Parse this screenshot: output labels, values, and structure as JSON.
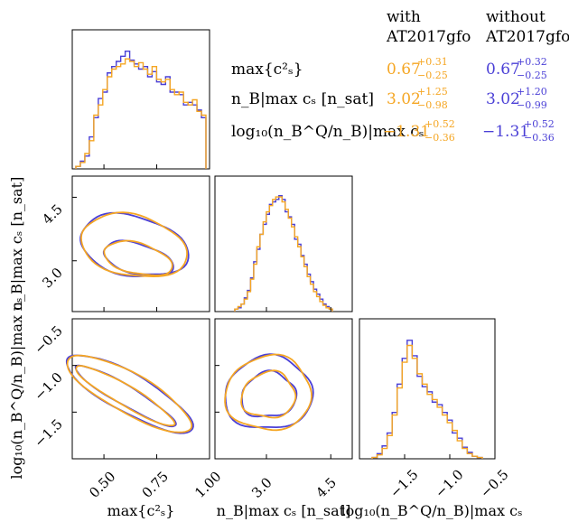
{
  "colors": {
    "with": "#f5a623",
    "without": "#4a3fd6",
    "frame": "#000000"
  },
  "legend": {
    "header_with": [
      "with",
      "AT2017gfo"
    ],
    "header_without": [
      "without",
      "AT2017gfo"
    ],
    "rows": [
      {
        "label": "max{c²ₛ}",
        "with": {
          "v": "0.67",
          "up": "+0.31",
          "lo": "−0.25"
        },
        "without": {
          "v": "0.67",
          "up": "+0.32",
          "lo": "−0.25"
        }
      },
      {
        "label": "n_B|max cₛ [n_sat]",
        "with": {
          "v": "3.02",
          "up": "+1.25",
          "lo": "−0.98"
        },
        "without": {
          "v": "3.02",
          "up": "+1.20",
          "lo": "−0.99"
        }
      },
      {
        "label": "log₁₀(n_B^Q/n_B)|max cₛ",
        "with": {
          "v": "−1.31",
          "up": "+0.52",
          "lo": "−0.36"
        },
        "without": {
          "v": "−1.31",
          "up": "+0.52",
          "lo": "−0.36"
        }
      }
    ]
  },
  "axes": {
    "xlabels": [
      "max{c²ₛ}",
      "n_B|max cₛ [n_sat]",
      "log₁₀(n_B^Q/n_B)|max cₛ"
    ],
    "ylabels": [
      "n_B|max cₛ [n_sat]",
      "log₁₀(n_B^Q/n_B)|max cₛ"
    ]
  },
  "chart_data": {
    "type": "corner",
    "variables": [
      {
        "name": "max{c²ₛ}",
        "range": [
          0.35,
          1.0
        ],
        "ticks": [
          0.5,
          0.75,
          1.0
        ],
        "tick_labels": [
          "0.50",
          "0.75",
          "1.00"
        ]
      },
      {
        "name": "n_B|max cₛ [n_sat]",
        "range": [
          1.8,
          5.0
        ],
        "ticks": [
          3.0,
          4.5
        ],
        "tick_labels": [
          "3.0",
          "4.5"
        ]
      },
      {
        "name": "log₁₀(n_B^Q/n_B)|max cₛ",
        "range": [
          -2.0,
          -0.5
        ],
        "ticks": [
          -1.5,
          -1.0,
          -0.5
        ],
        "tick_labels": [
          "−1.5",
          "−1.0",
          "−0.5"
        ]
      }
    ],
    "series": [
      {
        "name": "with AT2017gfo",
        "color": "#f5a623"
      },
      {
        "name": "without AT2017gfo",
        "color": "#4a3fd6"
      }
    ],
    "histograms": {
      "var0": {
        "with": [
          0.02,
          0.05,
          0.12,
          0.22,
          0.42,
          0.5,
          0.62,
          0.72,
          0.78,
          0.8,
          0.82,
          0.86,
          0.84,
          0.8,
          0.83,
          0.78,
          0.74,
          0.8,
          0.7,
          0.68,
          0.7,
          0.62,
          0.58,
          0.6,
          0.52,
          0.5,
          0.54,
          0.45,
          0.42
        ],
        "without": [
          0.02,
          0.06,
          0.1,
          0.25,
          0.4,
          0.55,
          0.6,
          0.75,
          0.8,
          0.84,
          0.88,
          0.92,
          0.85,
          0.82,
          0.78,
          0.8,
          0.72,
          0.76,
          0.68,
          0.66,
          0.72,
          0.6,
          0.6,
          0.58,
          0.5,
          0.52,
          0.5,
          0.46,
          0.4
        ]
      },
      "var1": {
        "with": [
          0.02,
          0.04,
          0.06,
          0.1,
          0.16,
          0.26,
          0.38,
          0.52,
          0.62,
          0.72,
          0.8,
          0.85,
          0.9,
          0.92,
          0.92,
          0.88,
          0.82,
          0.75,
          0.68,
          0.6,
          0.52,
          0.44,
          0.36,
          0.28,
          0.22,
          0.16,
          0.12,
          0.08,
          0.05,
          0.03,
          0.02
        ],
        "without": [
          0.02,
          0.03,
          0.06,
          0.11,
          0.17,
          0.27,
          0.4,
          0.5,
          0.62,
          0.7,
          0.78,
          0.86,
          0.88,
          0.9,
          0.93,
          0.9,
          0.8,
          0.76,
          0.7,
          0.58,
          0.54,
          0.45,
          0.38,
          0.3,
          0.24,
          0.18,
          0.14,
          0.1,
          0.06,
          0.04,
          0.02
        ]
      },
      "var2": {
        "with": [
          0.01,
          0.03,
          0.08,
          0.18,
          0.34,
          0.55,
          0.75,
          0.88,
          0.78,
          0.66,
          0.58,
          0.5,
          0.46,
          0.4,
          0.34,
          0.28,
          0.22,
          0.14,
          0.08,
          0.04,
          0.02,
          0.01
        ],
        "without": [
          0.01,
          0.04,
          0.1,
          0.2,
          0.36,
          0.58,
          0.78,
          0.92,
          0.8,
          0.64,
          0.56,
          0.52,
          0.44,
          0.42,
          0.36,
          0.3,
          0.2,
          0.16,
          0.09,
          0.05,
          0.02,
          0.01
        ]
      }
    },
    "contour_levels": [
      "inner",
      "outer"
    ]
  }
}
